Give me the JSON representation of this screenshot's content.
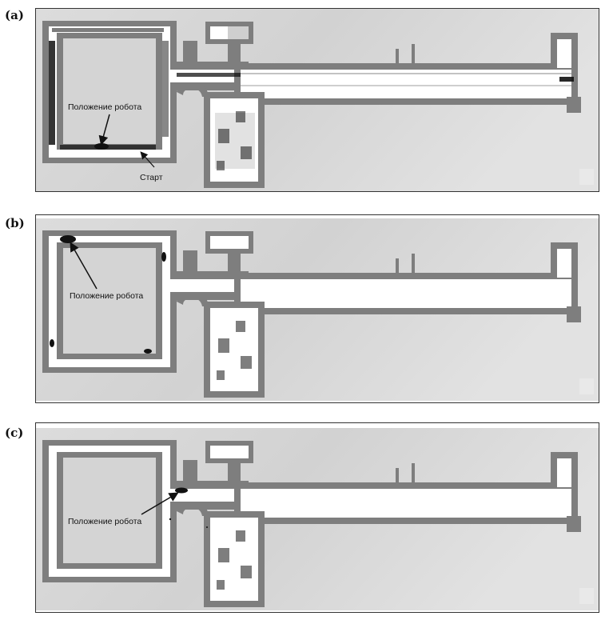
{
  "panels": [
    {
      "id": "a",
      "label": "(a)",
      "robot_label": "Положение робота",
      "start_label": "Старт"
    },
    {
      "id": "b",
      "label": "(b)",
      "robot_label": "Положение робота"
    },
    {
      "id": "c",
      "label": "(c)",
      "robot_label": "Положение робота"
    }
  ],
  "colors": {
    "wall": "#7e7e7e",
    "floor": "#ffffff",
    "unknown": "#d8d8d8",
    "particles": "#111111"
  }
}
